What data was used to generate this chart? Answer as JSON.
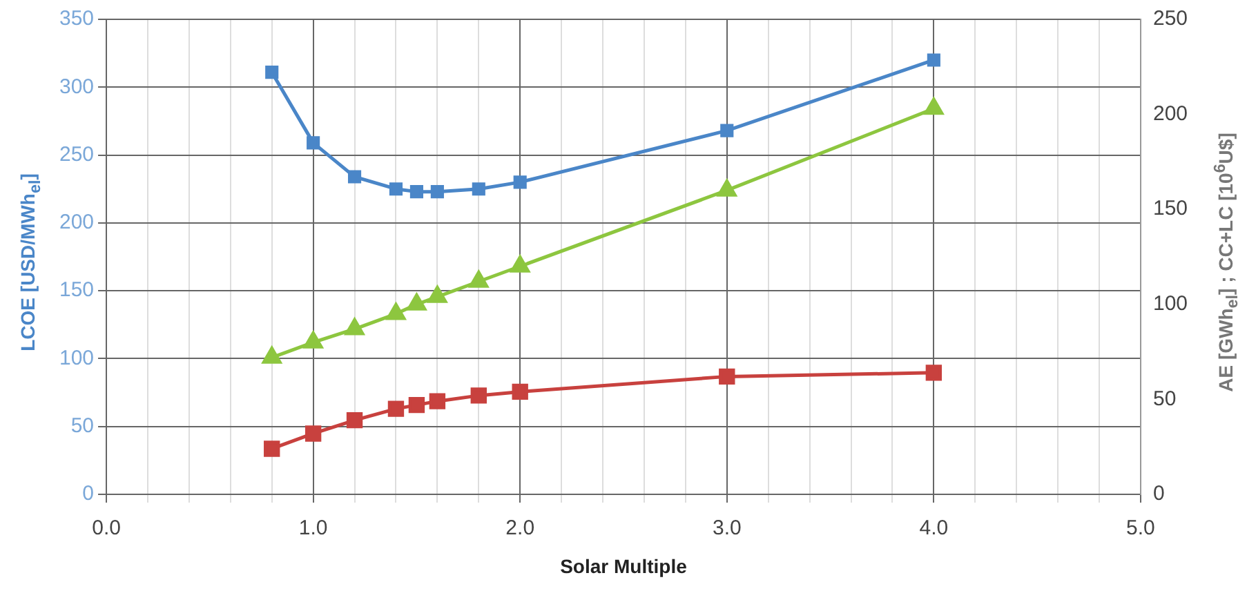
{
  "chart_data": {
    "type": "line",
    "xlabel": "Solar Multiple",
    "ylabel": "LCOE [USD/MWh$_{el}$]",
    "y2label": "AE [GWh$_{el}$] ; CC+LC [10$^{6}$U$]",
    "x": [
      0.8,
      1.0,
      1.2,
      1.4,
      1.5,
      1.6,
      1.8,
      2.0,
      3.0,
      4.0
    ],
    "series": [
      {
        "color": "#4a86c8",
        "marker": "square",
        "values": [
          311,
          259,
          234,
          225,
          223,
          223,
          225,
          230,
          268,
          320
        ]
      },
      {
        "color": "#8dc63f",
        "marker": "triangle",
        "axis": "y2",
        "values": [
          72,
          80,
          87,
          95,
          100,
          104,
          112,
          120,
          160,
          203
        ]
      },
      {
        "color": "#c8413e",
        "marker": "square",
        "axis": "y2",
        "values": [
          24,
          32,
          39,
          45,
          47,
          49,
          52,
          54,
          62,
          64
        ]
      }
    ],
    "xlim": [
      0,
      5
    ],
    "xticks": [
      {
        "value": 0,
        "label": "0.0"
      },
      {
        "value": 0.2,
        "label": null
      },
      {
        "value": 0.4,
        "label": null
      },
      {
        "value": 0.6,
        "label": null
      },
      {
        "value": 0.8,
        "label": null
      },
      {
        "value": 1,
        "label": "1.0"
      },
      {
        "value": 1.2,
        "label": null
      },
      {
        "value": 1.4,
        "label": null
      },
      {
        "value": 1.6,
        "label": null
      },
      {
        "value": 1.8,
        "label": null
      },
      {
        "value": 2,
        "label": "2.0"
      },
      {
        "value": 2.2,
        "label": null
      },
      {
        "value": 2.4,
        "label": null
      },
      {
        "value": 2.6,
        "label": null
      },
      {
        "value": 2.8,
        "label": null
      },
      {
        "value": 3,
        "label": "3.0"
      },
      {
        "value": 3.2,
        "label": null
      },
      {
        "value": 3.4,
        "label": null
      },
      {
        "value": 3.6,
        "label": null
      },
      {
        "value": 3.8,
        "label": null
      },
      {
        "value": 4,
        "label": "4.0"
      },
      {
        "value": 4.2,
        "label": null
      },
      {
        "value": 4.4,
        "label": null
      },
      {
        "value": 4.6,
        "label": null
      },
      {
        "value": 4.8,
        "label": null
      },
      {
        "value": 5,
        "label": "5.0"
      }
    ],
    "ylim": [
      0,
      350
    ],
    "yticks": [
      0,
      50,
      100,
      150,
      200,
      250,
      300,
      350
    ],
    "y2lim": [
      0,
      250
    ],
    "y2ticks": [
      0,
      50,
      100,
      150,
      200,
      250
    ],
    "grid": true,
    "legend": false,
    "line_style": "solid"
  }
}
